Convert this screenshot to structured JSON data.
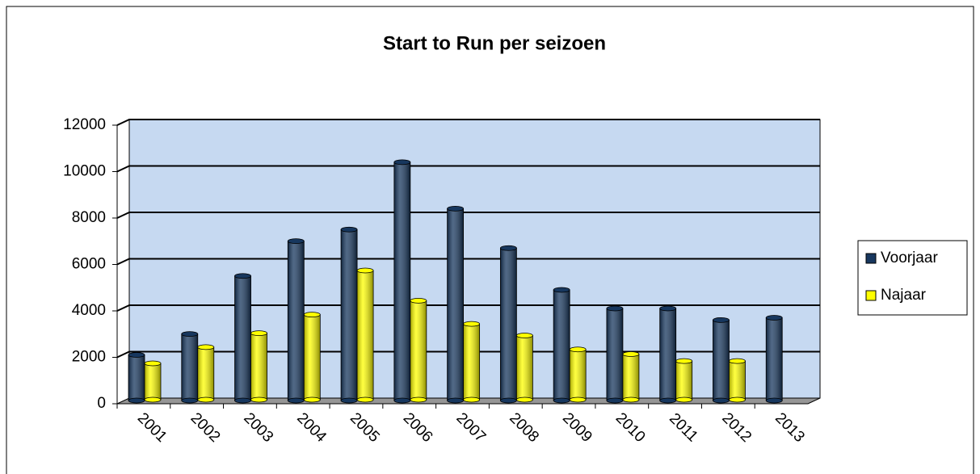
{
  "chart_data": {
    "type": "bar",
    "title": "Start to Run per seizoen",
    "categories": [
      "2001",
      "2002",
      "2003",
      "2004",
      "2005",
      "2006",
      "2007",
      "2008",
      "2009",
      "2010",
      "2011",
      "2012",
      "2013"
    ],
    "series": [
      {
        "name": "Voorjaar",
        "color": "#17375e",
        "values": [
          2000,
          2900,
          5400,
          6900,
          7400,
          10300,
          8300,
          6600,
          4800,
          4000,
          4000,
          3500,
          3600
        ]
      },
      {
        "name": "Najaar",
        "color": "#ffff00",
        "values": [
          1600,
          2300,
          2900,
          3700,
          5600,
          4300,
          3300,
          2800,
          2200,
          2000,
          1700,
          1700,
          null
        ]
      }
    ],
    "ylim": [
      0,
      12000
    ],
    "yticks": [
      0,
      2000,
      4000,
      6000,
      8000,
      10000,
      12000
    ],
    "grid": true,
    "legend": "right"
  }
}
